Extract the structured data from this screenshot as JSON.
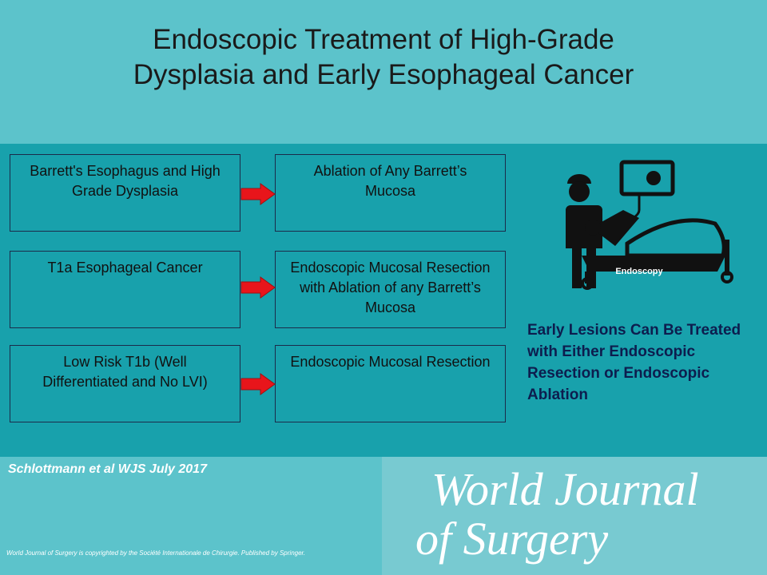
{
  "header": {
    "title": "Endoscopic Treatment of High-Grade Dysplasia and Early Esophageal Cancer"
  },
  "rows": [
    {
      "condition": "Barrett's Esophagus and High Grade Dysplasia",
      "treatment": "Ablation of Any Barrett’s Mucosa"
    },
    {
      "condition": "T1a Esophageal Cancer",
      "treatment": "Endoscopic Mucosal Resection with Ablation of any Barrett’s Mucosa"
    },
    {
      "condition": "Low Risk T1b (Well Differentiated and No LVI)",
      "treatment": "Endoscopic Mucosal Resection"
    }
  ],
  "icon": {
    "label": "Endoscopy"
  },
  "note": "Early Lesions Can Be Treated with Either Endoscopic Resection or Endoscopic Ablation",
  "footer": {
    "citation": "Schlottmann et al WJS July 2017",
    "logo": [
      "World Journal",
      "of Surgery"
    ],
    "copyright": "World Journal of Surgery is copyrighted by the Société Internationale de Chirurgie. Published by Springer."
  }
}
